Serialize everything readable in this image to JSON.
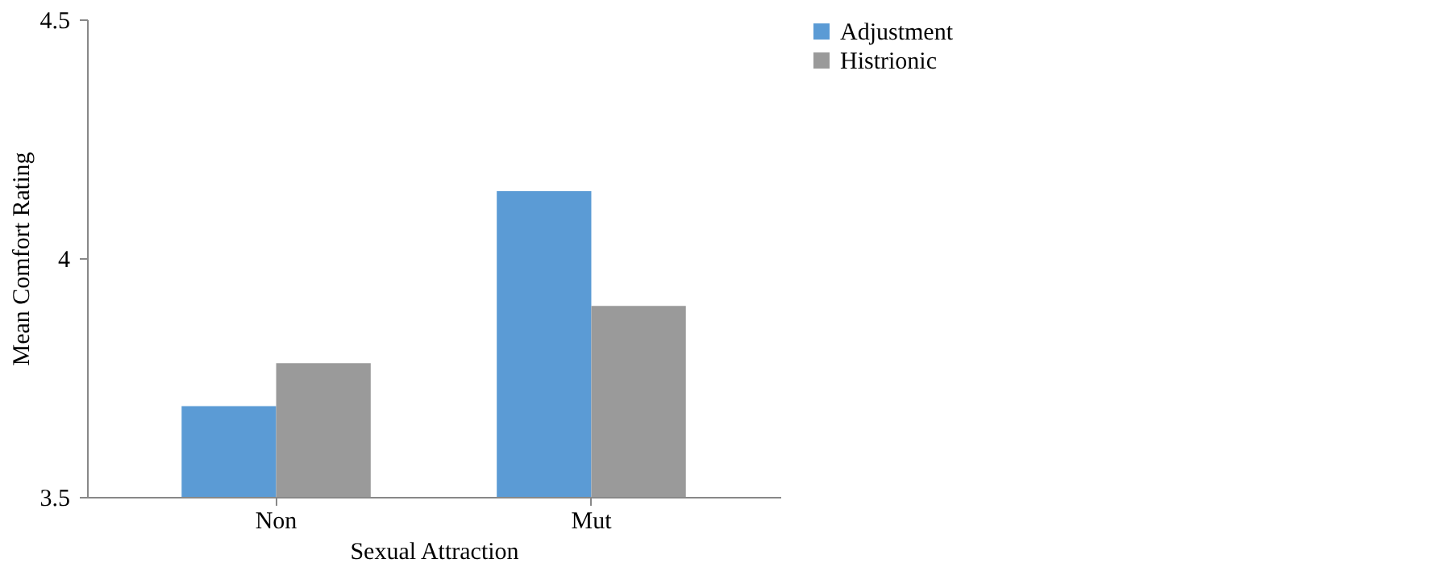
{
  "chart_data": {
    "type": "bar",
    "xlabel": "Sexual Attraction",
    "ylabel": "Mean Comfort Rating",
    "categories": [
      "Non",
      "Mut"
    ],
    "series": [
      {
        "name": "Adjustment",
        "color": "#5b9bd5",
        "values": [
          3.69,
          4.14
        ]
      },
      {
        "name": "Histrionic",
        "color": "#9a9a9a",
        "values": [
          3.78,
          3.9
        ]
      }
    ],
    "ylim": [
      3.5,
      4.5
    ],
    "yticks": [
      3.5,
      4,
      4.5
    ],
    "grid": false,
    "legend": "right"
  }
}
